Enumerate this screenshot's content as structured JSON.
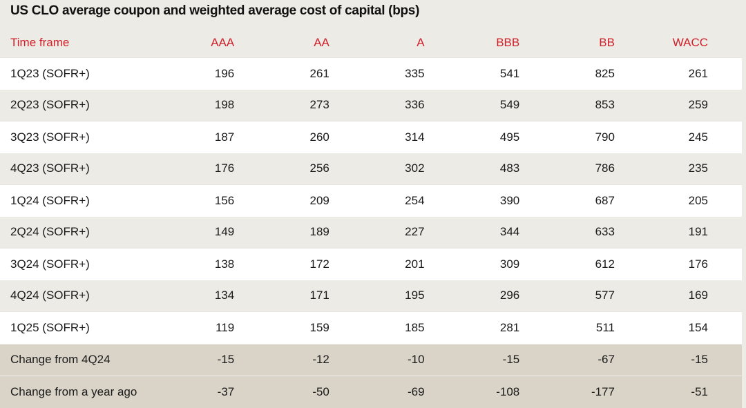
{
  "title": "US CLO average coupon and weighted average cost of capital (bps)",
  "columns": [
    "Time frame",
    "AAA",
    "AA",
    "A",
    "BBB",
    "BB",
    "WACC"
  ],
  "rows": [
    {
      "label": "1Q23 (SOFR+)",
      "values": [
        "196",
        "261",
        "335",
        "541",
        "825",
        "261"
      ]
    },
    {
      "label": "2Q23 (SOFR+)",
      "values": [
        "198",
        "273",
        "336",
        "549",
        "853",
        "259"
      ]
    },
    {
      "label": "3Q23 (SOFR+)",
      "values": [
        "187",
        "260",
        "314",
        "495",
        "790",
        "245"
      ]
    },
    {
      "label": "4Q23 (SOFR+)",
      "values": [
        "176",
        "256",
        "302",
        "483",
        "786",
        "235"
      ]
    },
    {
      "label": "1Q24 (SOFR+)",
      "values": [
        "156",
        "209",
        "254",
        "390",
        "687",
        "205"
      ]
    },
    {
      "label": "2Q24 (SOFR+)",
      "values": [
        "149",
        "189",
        "227",
        "344",
        "633",
        "191"
      ]
    },
    {
      "label": "3Q24 (SOFR+)",
      "values": [
        "138",
        "172",
        "201",
        "309",
        "612",
        "176"
      ]
    },
    {
      "label": "4Q24 (SOFR+)",
      "values": [
        "134",
        "171",
        "195",
        "296",
        "577",
        "169"
      ]
    },
    {
      "label": "1Q25 (SOFR+)",
      "values": [
        "119",
        "159",
        "185",
        "281",
        "511",
        "154"
      ]
    },
    {
      "label": "Change from 4Q24",
      "values": [
        "-15",
        "-12",
        "-10",
        "-15",
        "-67",
        "-15"
      ]
    },
    {
      "label": "Change from a year ago",
      "values": [
        "-37",
        "-50",
        "-69",
        "-108",
        "-177",
        "-51"
      ]
    }
  ],
  "colors": {
    "header_text": "#d0202a",
    "row_white": "#ffffff",
    "row_alt": "#ecebe6",
    "row_change": "#d9d4c7"
  }
}
